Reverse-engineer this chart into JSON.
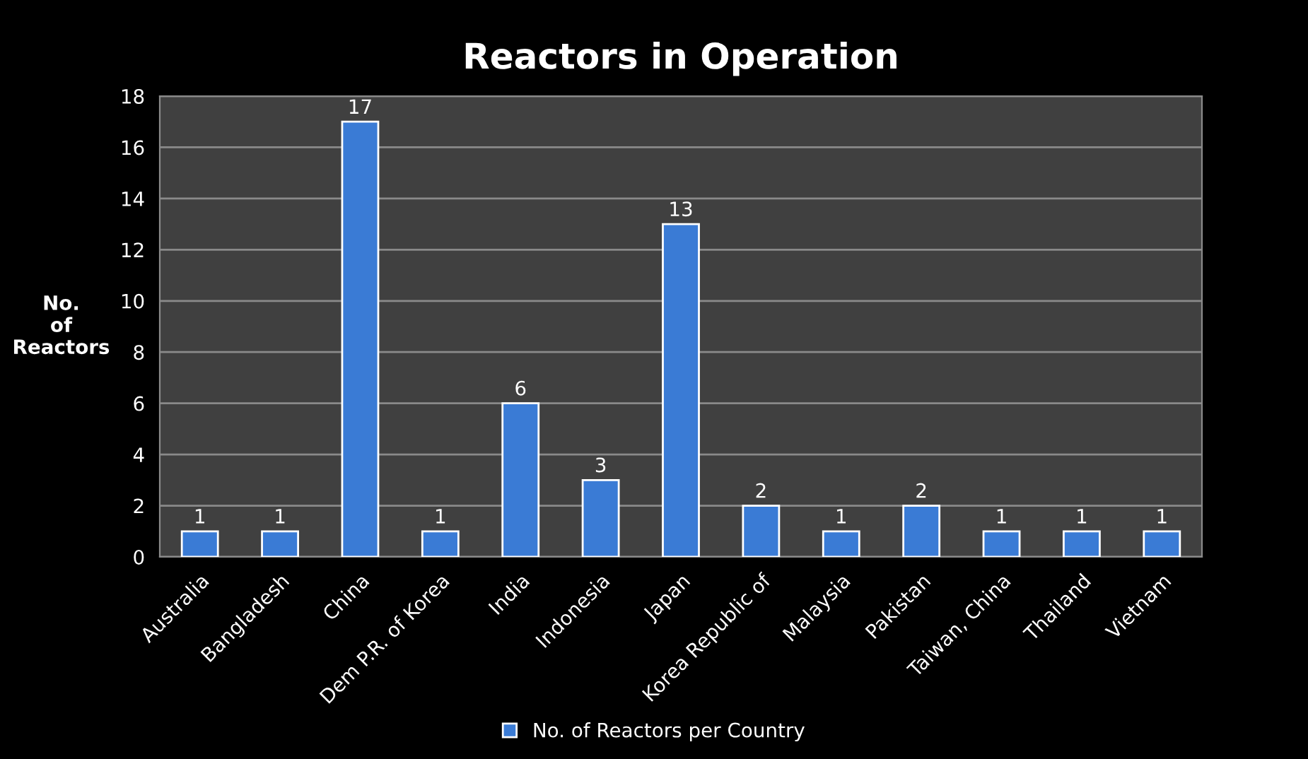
{
  "chart_data": {
    "type": "bar",
    "title": "Reactors in Operation",
    "ylabel": "No.\nof\nReactors",
    "categories": [
      "Australia",
      "Bangladesh",
      "China",
      "Dem P.R. of Korea",
      "India",
      "Indonesia",
      "Japan",
      "Korea Republic of",
      "Malaysia",
      "Pakistan",
      "Taiwan, China",
      "Thailand",
      "Vietnam"
    ],
    "series": [
      {
        "name": "No. of Reactors per Country",
        "color": "#3a7bd5",
        "values": [
          1,
          1,
          17,
          1,
          6,
          3,
          13,
          2,
          1,
          2,
          1,
          1,
          1
        ]
      }
    ],
    "ylim": [
      0,
      18
    ],
    "yticks": [
      0,
      2,
      4,
      6,
      8,
      10,
      12,
      14,
      16,
      18
    ],
    "grid": "y",
    "legend": "bottom",
    "data_labels": true
  }
}
